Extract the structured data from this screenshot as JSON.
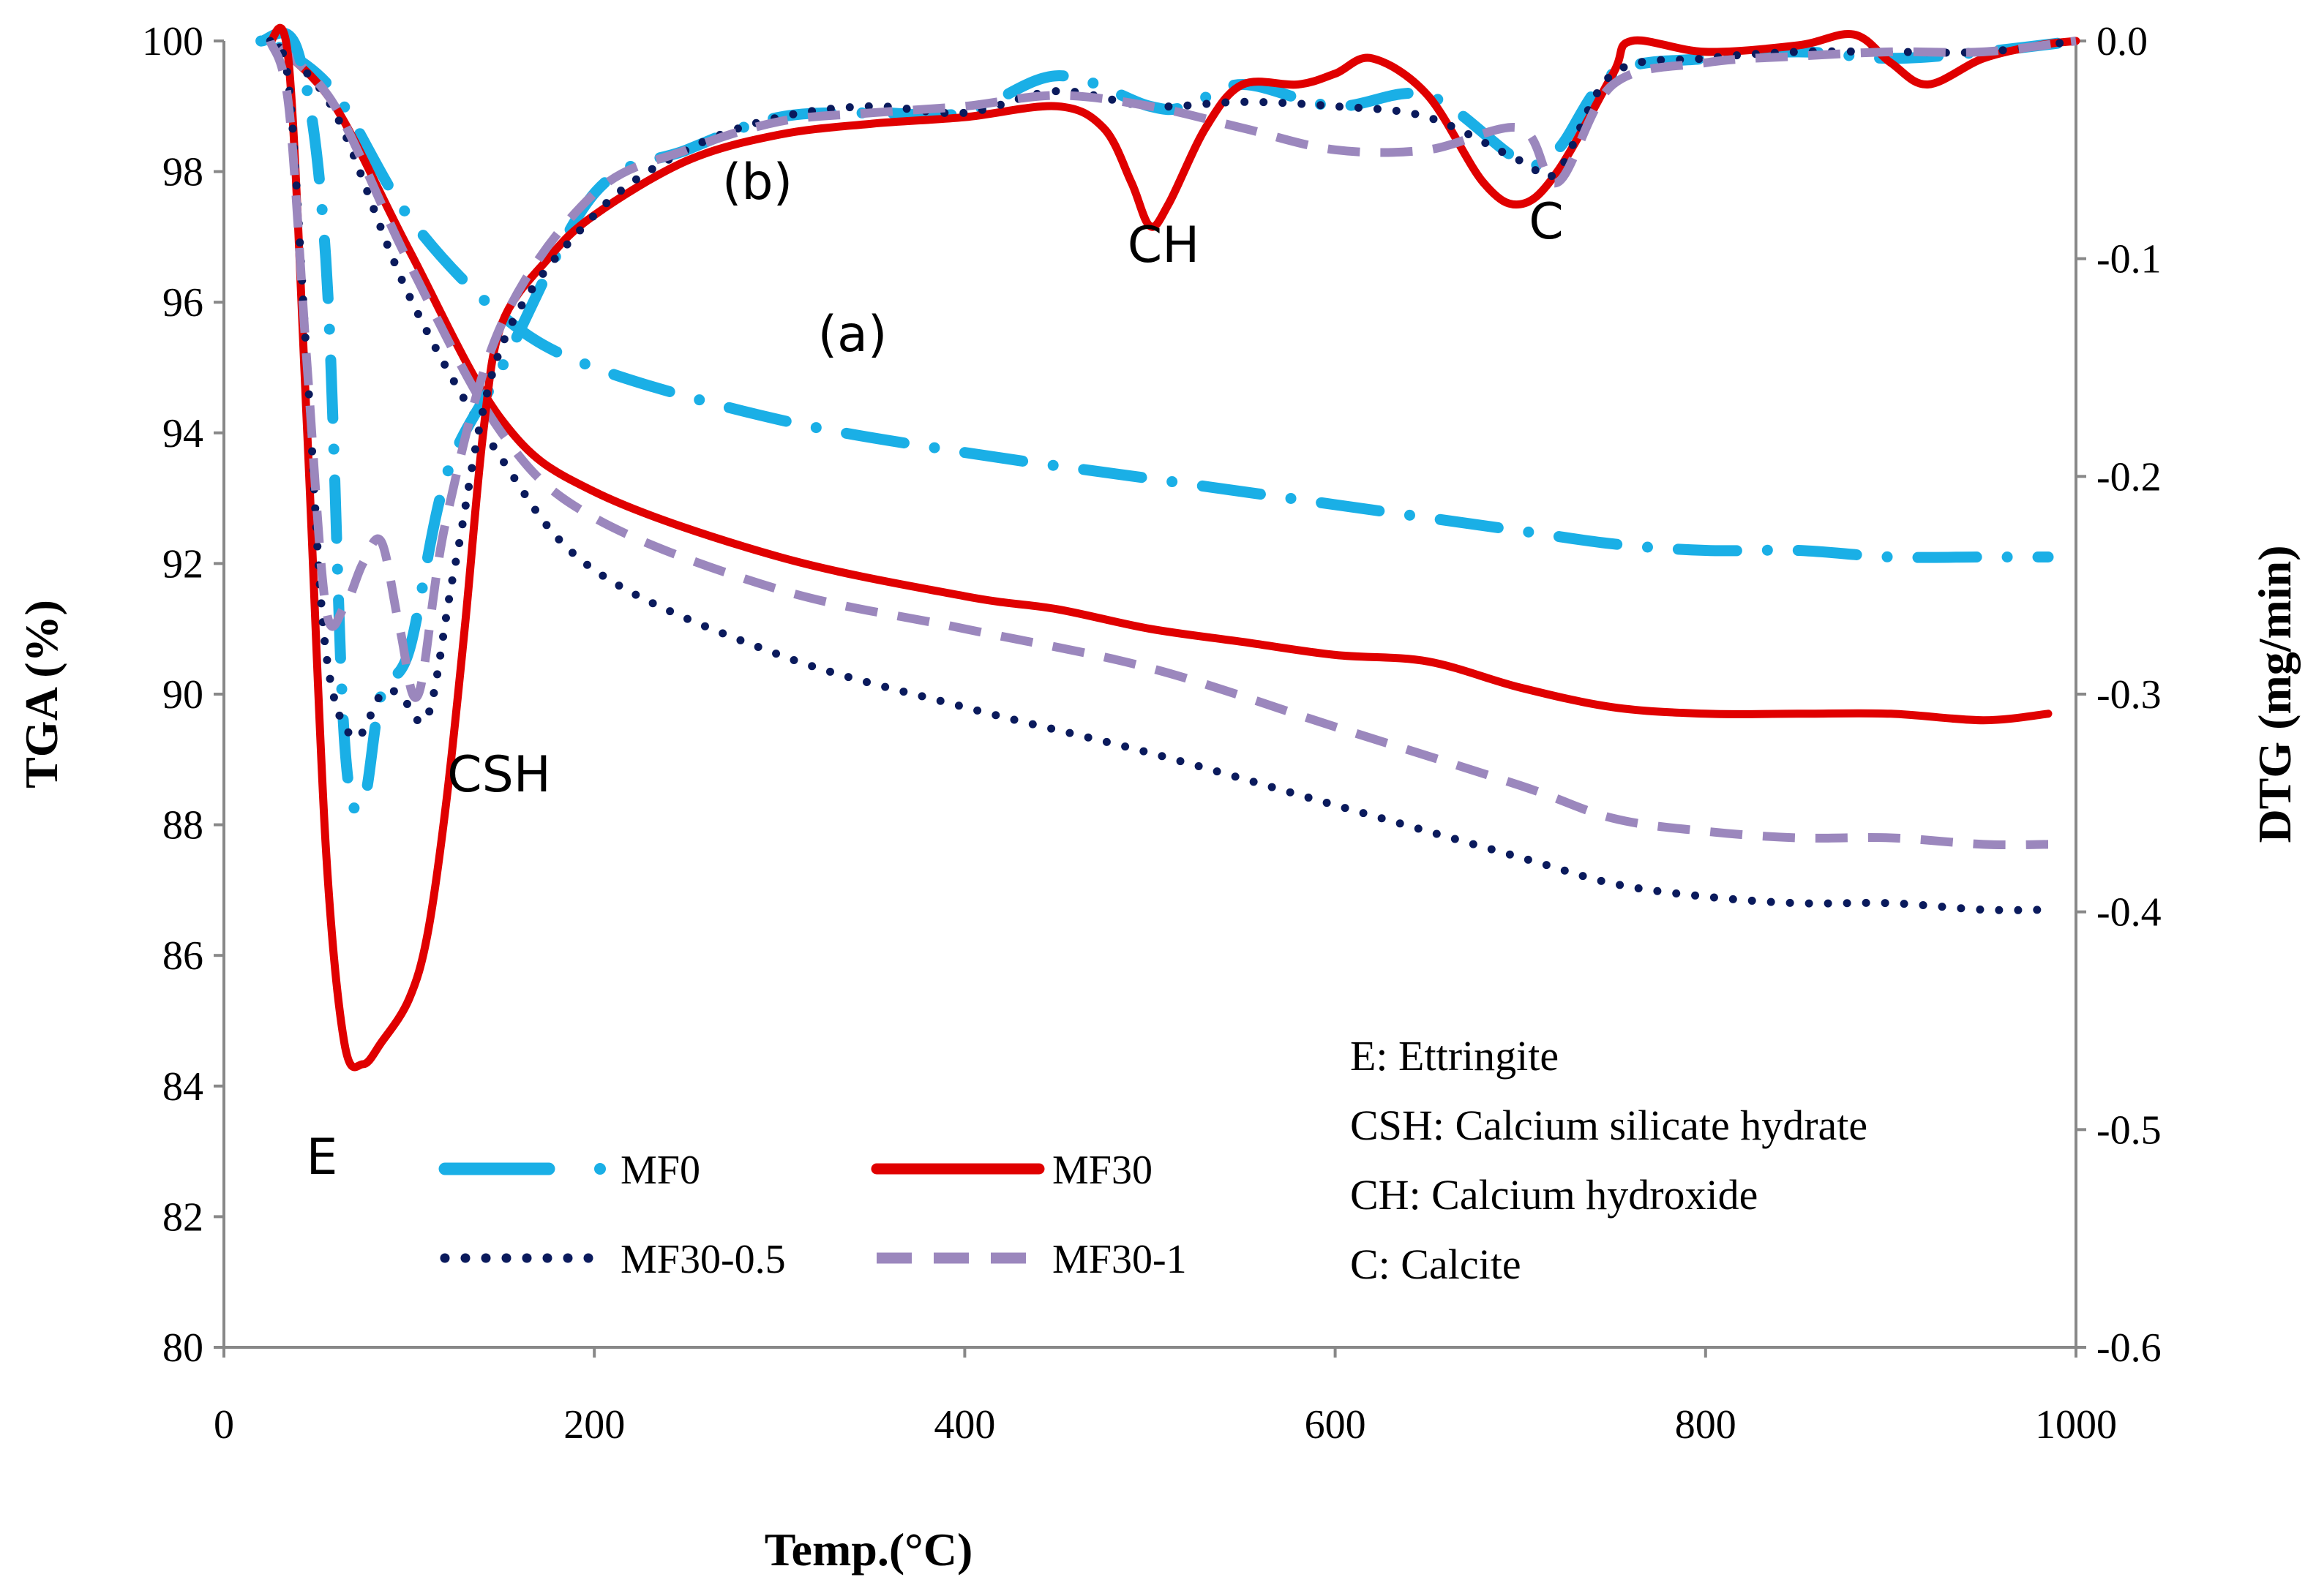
{
  "chart_data": {
    "type": "line",
    "title": "",
    "xlabel": "Temp.(°C)",
    "ylabel_left": "TGA (%)",
    "ylabel_right": "DTG (mg/min)",
    "xlim": [
      0,
      1000
    ],
    "ylim_left": [
      80,
      100
    ],
    "ylim_right": [
      -0.6,
      0.0
    ],
    "x_ticks": [
      0,
      200,
      400,
      600,
      800,
      1000
    ],
    "y_left_ticks": [
      80,
      82,
      84,
      86,
      88,
      90,
      92,
      94,
      96,
      98,
      100
    ],
    "y_right_ticks": [
      "0.0",
      "-0.1",
      "-0.2",
      "-0.3",
      "-0.4",
      "-0.5",
      "-0.6"
    ],
    "legend": [
      "MF0",
      "MF30",
      "MF30-0.5",
      "MF30-1"
    ],
    "colors": {
      "MF0": "#1aafe6",
      "MF30": "#e00000",
      "MF30-0.5": "#0a1a5c",
      "MF30-1": "#9b87bd"
    },
    "series": [
      {
        "name": "MF0",
        "kind": "TGA",
        "axis": "left",
        "style": "dashdot",
        "x": [
          30,
          60,
          100,
          150,
          200,
          300,
          400,
          500,
          600,
          700,
          750,
          800,
          850,
          900,
          950,
          985
        ],
        "y": [
          99.9,
          99.2,
          97.3,
          95.8,
          95.0,
          94.2,
          93.7,
          93.3,
          92.9,
          92.5,
          92.3,
          92.2,
          92.2,
          92.1,
          92.1,
          92.1
        ]
      },
      {
        "name": "MF30",
        "kind": "TGA",
        "axis": "left",
        "style": "solid",
        "x": [
          30,
          60,
          100,
          150,
          200,
          300,
          400,
          450,
          500,
          550,
          600,
          650,
          700,
          750,
          800,
          850,
          900,
          950,
          985
        ],
        "y": [
          99.9,
          99.0,
          96.8,
          94.2,
          93.1,
          92.1,
          91.5,
          91.3,
          91.0,
          90.8,
          90.6,
          90.5,
          90.1,
          89.8,
          89.7,
          89.7,
          89.7,
          89.6,
          89.7
        ]
      },
      {
        "name": "MF30-0.5",
        "kind": "TGA",
        "axis": "left",
        "style": "dotted",
        "x": [
          30,
          60,
          100,
          150,
          200,
          300,
          400,
          500,
          600,
          700,
          750,
          800,
          850,
          900,
          950,
          985
        ],
        "y": [
          99.9,
          98.9,
          96.1,
          93.6,
          91.9,
          90.6,
          89.8,
          89.1,
          88.3,
          87.5,
          87.1,
          86.9,
          86.8,
          86.8,
          86.7,
          86.7
        ]
      },
      {
        "name": "MF30-1",
        "kind": "TGA",
        "axis": "left",
        "style": "dashed",
        "x": [
          30,
          60,
          100,
          150,
          200,
          300,
          400,
          500,
          600,
          700,
          750,
          800,
          850,
          900,
          950,
          985
        ],
        "y": [
          99.9,
          99.0,
          96.6,
          94.0,
          92.7,
          91.6,
          91.0,
          90.4,
          89.5,
          88.6,
          88.1,
          87.9,
          87.8,
          87.8,
          87.7,
          87.7
        ]
      },
      {
        "name": "MF0",
        "kind": "DTG",
        "axis": "right",
        "style": "dashdot",
        "x": [
          20,
          40,
          55,
          65,
          75,
          85,
          100,
          120,
          150,
          200,
          250,
          300,
          350,
          400,
          450,
          500,
          520,
          550,
          600,
          650,
          700,
          720,
          750,
          800,
          850,
          900,
          950,
          1000
        ],
        "y": [
          0.0,
          -0.005,
          -0.1,
          -0.32,
          -0.35,
          -0.3,
          -0.28,
          -0.2,
          -0.15,
          -0.07,
          -0.05,
          -0.035,
          -0.033,
          -0.033,
          -0.016,
          -0.03,
          -0.03,
          -0.02,
          -0.03,
          -0.025,
          -0.055,
          -0.05,
          -0.015,
          -0.008,
          -0.005,
          -0.008,
          -0.005,
          0.0
        ]
      },
      {
        "name": "MF30",
        "kind": "DTG",
        "axis": "right",
        "style": "solid",
        "x": [
          25,
          35,
          45,
          55,
          65,
          75,
          85,
          100,
          110,
          120,
          130,
          140,
          150,
          175,
          200,
          250,
          300,
          350,
          400,
          450,
          475,
          490,
          500,
          510,
          530,
          550,
          580,
          600,
          620,
          650,
          680,
          700,
          720,
          750,
          760,
          800,
          850,
          880,
          900,
          920,
          950,
          980,
          1000
        ],
        "y": [
          0.0,
          -0.01,
          -0.18,
          -0.37,
          -0.46,
          -0.47,
          -0.46,
          -0.44,
          -0.41,
          -0.35,
          -0.27,
          -0.18,
          -0.13,
          -0.1,
          -0.08,
          -0.055,
          -0.043,
          -0.038,
          -0.035,
          -0.03,
          -0.04,
          -0.065,
          -0.085,
          -0.075,
          -0.04,
          -0.02,
          -0.02,
          -0.015,
          -0.008,
          -0.025,
          -0.065,
          -0.075,
          -0.06,
          -0.015,
          0.0,
          -0.005,
          -0.002,
          0.003,
          -0.01,
          -0.02,
          -0.008,
          -0.002,
          0.0
        ]
      },
      {
        "name": "MF30-0.5",
        "kind": "DTG",
        "axis": "right",
        "style": "dotted",
        "x": [
          25,
          35,
          45,
          55,
          70,
          85,
          95,
          110,
          125,
          150,
          200,
          250,
          300,
          350,
          400,
          450,
          500,
          550,
          600,
          650,
          700,
          720,
          750,
          800,
          850,
          900,
          950,
          1000
        ],
        "y": [
          0.0,
          -0.02,
          -0.15,
          -0.28,
          -0.32,
          -0.3,
          -0.3,
          -0.31,
          -0.24,
          -0.14,
          -0.08,
          -0.05,
          -0.035,
          -0.03,
          -0.033,
          -0.023,
          -0.03,
          -0.028,
          -0.03,
          -0.035,
          -0.055,
          -0.06,
          -0.015,
          -0.008,
          -0.005,
          -0.005,
          -0.005,
          0.0
        ]
      },
      {
        "name": "MF30-1",
        "kind": "DTG",
        "axis": "right",
        "style": "dashed",
        "x": [
          25,
          35,
          45,
          55,
          65,
          75,
          85,
          95,
          105,
          120,
          150,
          200,
          250,
          300,
          350,
          400,
          450,
          500,
          550,
          600,
          650,
          700,
          720,
          750,
          800,
          850,
          900,
          950,
          1000
        ],
        "y": [
          0.0,
          -0.03,
          -0.15,
          -0.26,
          -0.26,
          -0.24,
          -0.23,
          -0.27,
          -0.3,
          -0.22,
          -0.13,
          -0.07,
          -0.05,
          -0.037,
          -0.033,
          -0.03,
          -0.025,
          -0.03,
          -0.04,
          -0.05,
          -0.05,
          -0.04,
          -0.065,
          -0.02,
          -0.01,
          -0.007,
          -0.005,
          -0.005,
          0.0
        ]
      }
    ],
    "annotations": [
      {
        "text": "(a)",
        "x": 340,
        "y": 95.8
      },
      {
        "text": "(b)",
        "x": 290,
        "y": 97.9
      },
      {
        "text": "CH",
        "x": 507,
        "y": 96.9
      },
      {
        "text": "C",
        "x": 714,
        "y": 97.2
      },
      {
        "text": "CSH",
        "x": 148,
        "y": 88.5
      },
      {
        "text": "E",
        "x": 53,
        "y": 82.9
      }
    ],
    "key": [
      "E: Ettringite",
      "CSH: Calcium silicate hydrate",
      "CH: Calcium hydroxide",
      "C: Calcite"
    ]
  }
}
